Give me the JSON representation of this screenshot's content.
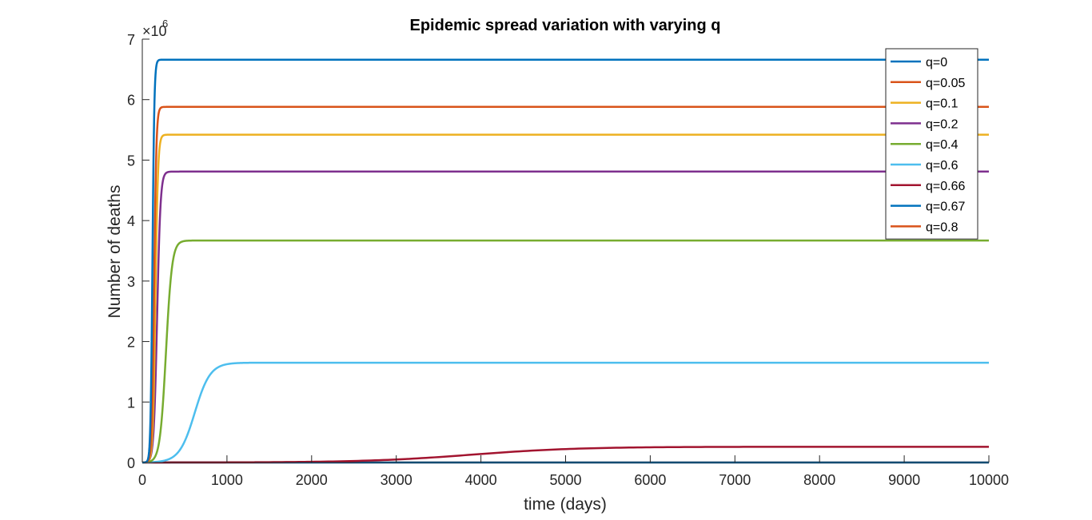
{
  "chart_data": {
    "type": "line",
    "title": "Epidemic spread variation with varying q",
    "xlabel": "time (days)",
    "ylabel": "Number of deaths",
    "y_exponent_label": "×10",
    "y_exponent_power": "6",
    "xlim": [
      0,
      10000
    ],
    "ylim": [
      0,
      7
    ],
    "x_ticks": [
      0,
      1000,
      2000,
      3000,
      4000,
      5000,
      6000,
      7000,
      8000,
      9000,
      10000
    ],
    "x_tick_labels": [
      "0",
      "1000",
      "2000",
      "3000",
      "4000",
      "5000",
      "6000",
      "7000",
      "8000",
      "9000",
      "10000"
    ],
    "y_ticks": [
      0,
      1,
      2,
      3,
      4,
      5,
      6,
      7
    ],
    "y_tick_labels": [
      "0",
      "1",
      "2",
      "3",
      "4",
      "5",
      "6",
      "7"
    ],
    "grid": false,
    "legend_position": "top-right",
    "series": [
      {
        "name": "q=0",
        "color": "#0072BD",
        "plateau": 6.66,
        "midpoint": 120,
        "steepness": 0.09
      },
      {
        "name": "q=0.05",
        "color": "#D95319",
        "plateau": 5.88,
        "midpoint": 140,
        "steepness": 0.075
      },
      {
        "name": "q=0.1",
        "color": "#EDB120",
        "plateau": 5.42,
        "midpoint": 155,
        "steepness": 0.065
      },
      {
        "name": "q=0.2",
        "color": "#7E2F8E",
        "plateau": 4.81,
        "midpoint": 175,
        "steepness": 0.05
      },
      {
        "name": "q=0.4",
        "color": "#77AC30",
        "plateau": 3.67,
        "midpoint": 280,
        "steepness": 0.028
      },
      {
        "name": "q=0.6",
        "color": "#4DBEEE",
        "plateau": 1.65,
        "midpoint": 620,
        "steepness": 0.011
      },
      {
        "name": "q=0.66",
        "color": "#A2142F",
        "plateau": 0.26,
        "midpoint": 3900,
        "steepness": 0.0016
      },
      {
        "name": "q=0.67",
        "color": "#0072BD",
        "plateau": 0.0,
        "midpoint": 5000,
        "steepness": 0.001
      },
      {
        "name": "q=0.8",
        "color": "#D95319",
        "plateau": 0.0,
        "midpoint": 5000,
        "steepness": 0.001
      }
    ]
  }
}
